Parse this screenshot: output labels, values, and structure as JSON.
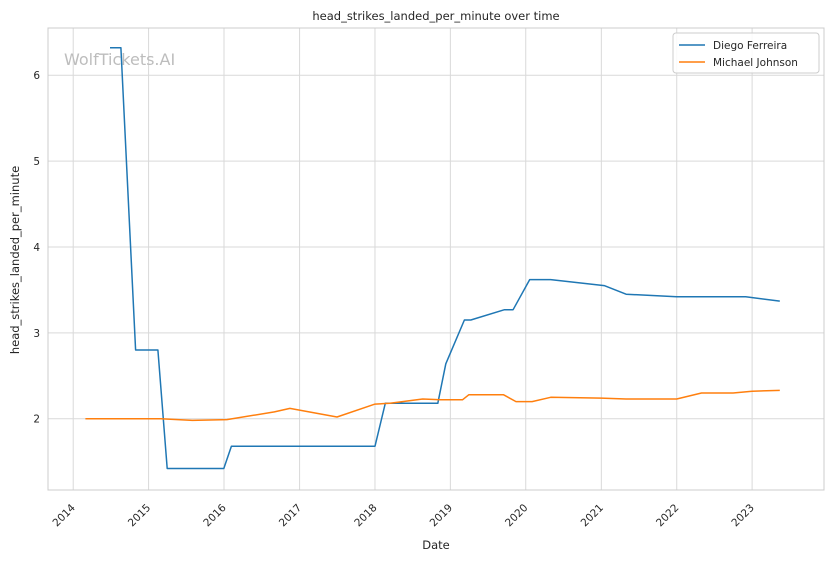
{
  "chart_data": {
    "type": "line",
    "title": "head_strikes_landed_per_minute over time",
    "xlabel": "Date",
    "ylabel": "head_strikes_landed_per_minute",
    "watermark": "WolfTickets.AI",
    "xlim": [
      "2013-09-01",
      "2023-12-15"
    ],
    "ylim": [
      1.17,
      6.55
    ],
    "x_ticks": [
      "2014",
      "2015",
      "2016",
      "2017",
      "2018",
      "2019",
      "2020",
      "2021",
      "2022",
      "2023"
    ],
    "y_ticks": [
      2,
      3,
      4,
      5,
      6
    ],
    "grid": true,
    "legend_position": "top-right",
    "series": [
      {
        "name": "Diego Ferreira",
        "color": "#1f77b4",
        "points": [
          [
            "2014-06-28",
            6.32
          ],
          [
            "2014-08-20",
            6.32
          ],
          [
            "2014-10-30",
            2.8
          ],
          [
            "2015-02-15",
            2.8
          ],
          [
            "2015-04-01",
            1.42
          ],
          [
            "2015-12-31",
            1.42
          ],
          [
            "2016-02-06",
            1.68
          ],
          [
            "2018-01-01",
            1.68
          ],
          [
            "2018-02-20",
            2.18
          ],
          [
            "2018-11-01",
            2.18
          ],
          [
            "2018-12-10",
            2.64
          ],
          [
            "2019-03-10",
            3.15
          ],
          [
            "2019-04-10",
            3.15
          ],
          [
            "2019-09-20",
            3.27
          ],
          [
            "2019-11-01",
            3.27
          ],
          [
            "2020-01-20",
            3.62
          ],
          [
            "2020-05-01",
            3.62
          ],
          [
            "2021-01-15",
            3.55
          ],
          [
            "2021-05-01",
            3.45
          ],
          [
            "2022-01-01",
            3.42
          ],
          [
            "2022-12-01",
            3.42
          ],
          [
            "2023-05-15",
            3.37
          ]
        ]
      },
      {
        "name": "Michael Johnson",
        "color": "#ff7f0e",
        "points": [
          [
            "2014-03-01",
            2.0
          ],
          [
            "2015-03-01",
            2.0
          ],
          [
            "2015-08-01",
            1.98
          ],
          [
            "2016-01-15",
            1.99
          ],
          [
            "2016-09-01",
            2.08
          ],
          [
            "2016-11-15",
            2.12
          ],
          [
            "2017-07-01",
            2.02
          ],
          [
            "2018-01-01",
            2.17
          ],
          [
            "2018-03-15",
            2.18
          ],
          [
            "2018-08-20",
            2.23
          ],
          [
            "2018-11-15",
            2.22
          ],
          [
            "2019-03-01",
            2.22
          ],
          [
            "2019-04-01",
            2.28
          ],
          [
            "2019-09-15",
            2.28
          ],
          [
            "2019-11-15",
            2.2
          ],
          [
            "2020-02-01",
            2.2
          ],
          [
            "2020-05-01",
            2.25
          ],
          [
            "2021-01-01",
            2.24
          ],
          [
            "2021-05-01",
            2.23
          ],
          [
            "2022-01-01",
            2.23
          ],
          [
            "2022-05-01",
            2.3
          ],
          [
            "2022-10-01",
            2.3
          ],
          [
            "2023-01-01",
            2.32
          ],
          [
            "2023-05-15",
            2.33
          ]
        ]
      }
    ]
  }
}
